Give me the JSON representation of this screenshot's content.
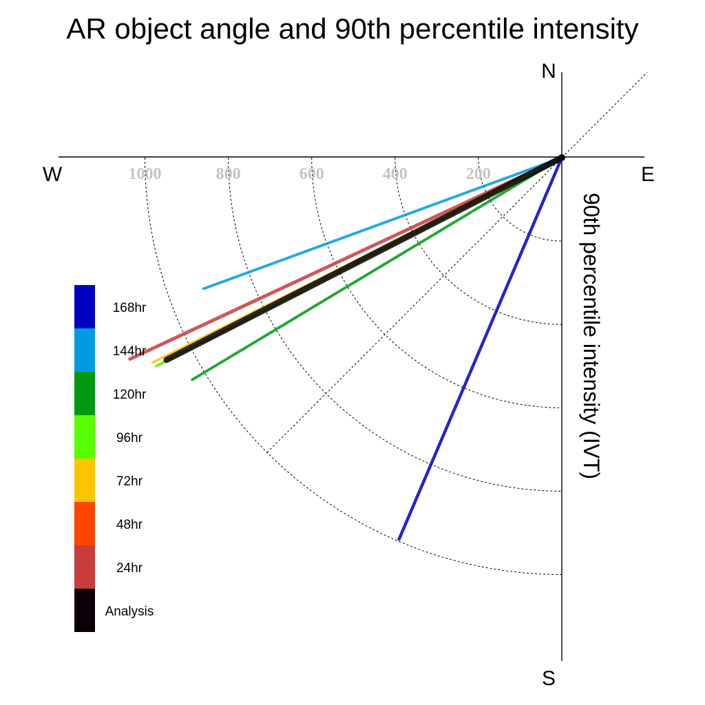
{
  "chart_data": {
    "type": "polar-line",
    "title": "AR object angle and 90th percentile intensity",
    "radial_label": "90th percentile intensity (IVT)",
    "compass": {
      "north": "N",
      "south": "S",
      "east": "E",
      "west": "W"
    },
    "radial_ticks": [
      200,
      400,
      600,
      800,
      1000
    ],
    "radial_max": 1000,
    "angle_convention": "degrees below west (0 = W, 90 = S)",
    "grid": true,
    "legend_position": "left",
    "series": [
      {
        "name": "Analysis",
        "color": "#0b0008",
        "angle": 27.1,
        "intensity": 1065,
        "width": 9
      },
      {
        "name": "24hr",
        "color": "#c83c3c",
        "angle": 25.0,
        "intensity": 1143,
        "width": 5
      },
      {
        "name": "48hr",
        "color": "#ff4400",
        "angle": 27.2,
        "intensity": 1088,
        "width": 3.5
      },
      {
        "name": "72hr",
        "color": "#ffc400",
        "angle": 26.6,
        "intensity": 1098,
        "width": 3.5
      },
      {
        "name": "96hr",
        "color": "#55ff00",
        "angle": 27.2,
        "intensity": 1095,
        "width": 3.5
      },
      {
        "name": "120hr",
        "color": "#009a10",
        "angle": 31.0,
        "intensity": 1034,
        "width": 4
      },
      {
        "name": "144hr",
        "color": "#009ce0",
        "angle": 20.1,
        "intensity": 915,
        "width": 4
      },
      {
        "name": "168hr",
        "color": "#0000c4",
        "angle": 66.9,
        "intensity": 995,
        "width": 4.5
      }
    ],
    "legend_order": [
      "168hr",
      "144hr",
      "120hr",
      "96hr",
      "72hr",
      "48hr",
      "24hr",
      "Analysis"
    ]
  }
}
